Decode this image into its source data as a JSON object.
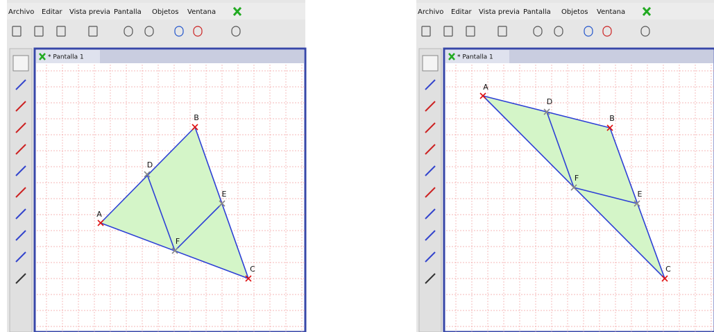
{
  "windows": [
    {
      "menu": [
        "Archivo",
        "Editar",
        "Vista previa",
        "Pantalla",
        "Objetos",
        "Ventana"
      ],
      "tab": "* Pantalla 1",
      "points": [
        "A",
        "B",
        "C",
        "D",
        "E",
        "F"
      ]
    },
    {
      "menu": [
        "Archivo",
        "Editar",
        "Vista previa",
        "Pantalla",
        "Objetos",
        "Ventana"
      ],
      "tab": "* Pantalla 1",
      "points": [
        "A",
        "B",
        "C",
        "D",
        "E",
        "F"
      ]
    }
  ]
}
